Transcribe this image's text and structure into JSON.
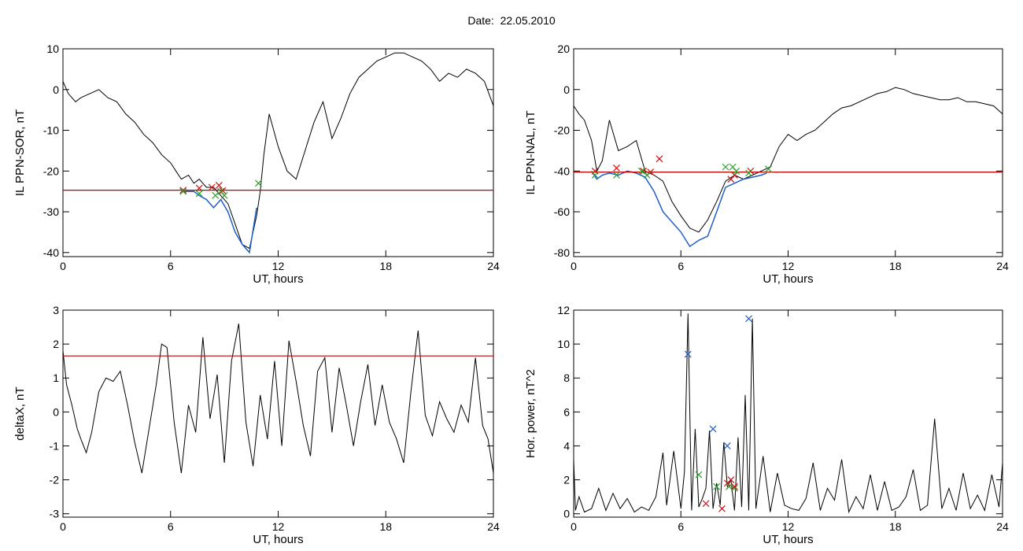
{
  "figure_title": "Date:  22.05.2010",
  "colors": {
    "trace": "#000000",
    "highlight": "#1f5fc7",
    "threshold": "#c00000",
    "red_marker": "#d01010",
    "green_marker": "#2ca02c",
    "blue_marker": "#1f5fc7"
  },
  "chart_data": [
    {
      "type": "line",
      "panel": "top-left",
      "xlabel": "UT, hours",
      "ylabel": "IL PPN-SOR, nT",
      "xlim": [
        0,
        24
      ],
      "ylim": [
        -41,
        10
      ],
      "xticks": [
        0,
        6,
        12,
        18,
        24
      ],
      "yticks": [
        10,
        0,
        -10,
        -20,
        -30,
        -40
      ],
      "threshold": -24.7,
      "series": [
        {
          "style": "black",
          "x": [
            0,
            0.3,
            0.7,
            1,
            1.5,
            2,
            2.5,
            3,
            3.5,
            4,
            4.5,
            5,
            5.5,
            6,
            6.3,
            6.6,
            7,
            7.3,
            7.6,
            8,
            8.4,
            8.8,
            9.2,
            9.6,
            10,
            10.4,
            10.8,
            11,
            11.2,
            11.5,
            12,
            12.5,
            13,
            13.5,
            14,
            14.5,
            15,
            15.5,
            16,
            16.5,
            17,
            17.5,
            18,
            18.5,
            19,
            19.5,
            20,
            20.5,
            21,
            21.5,
            22,
            22.5,
            23,
            23.5,
            24
          ],
          "y": [
            2,
            -1,
            -3,
            -2,
            -1,
            0,
            -2,
            -3,
            -6,
            -8,
            -11,
            -13,
            -16,
            -18,
            -20,
            -22,
            -21,
            -23,
            -22,
            -24,
            -24,
            -26,
            -28,
            -33,
            -38,
            -39,
            -31,
            -25,
            -16,
            -6,
            -14,
            -20,
            -22,
            -15,
            -8,
            -3,
            -12,
            -7,
            -1,
            3,
            5,
            7,
            8,
            9,
            9,
            8,
            7,
            5,
            2,
            4,
            3,
            5,
            4,
            2,
            -4
          ]
        },
        {
          "style": "blue",
          "x": [
            6.6,
            7,
            7.3,
            7.6,
            8,
            8.4,
            8.8,
            9.2,
            9.6,
            10,
            10.4,
            10.8
          ],
          "y": [
            -25,
            -25,
            -25,
            -26,
            -27,
            -29,
            -27,
            -30,
            -35,
            -38,
            -40,
            -29
          ]
        }
      ],
      "markers": [
        {
          "color": "red",
          "x": [
            6.7,
            7.6,
            8.3,
            8.7,
            8.9
          ],
          "y": [
            -24.7,
            -24.2,
            -24,
            -23.5,
            -24.8
          ]
        },
        {
          "color": "green",
          "x": [
            6.7,
            7.6,
            8.5,
            8.8,
            9.0,
            10.9
          ],
          "y": [
            -25,
            -25.5,
            -26,
            -25,
            -26,
            -23
          ]
        }
      ]
    },
    {
      "type": "line",
      "panel": "top-right",
      "xlabel": "UT, hours",
      "ylabel": "IL PPN-NAL, nT",
      "xlim": [
        0,
        24
      ],
      "ylim": [
        -82,
        20
      ],
      "xticks": [
        0,
        6,
        12,
        18,
        24
      ],
      "yticks": [
        20,
        0,
        -20,
        -40,
        -60,
        -80
      ],
      "threshold": -40.5,
      "series": [
        {
          "style": "black",
          "x": [
            0,
            0.3,
            0.6,
            1,
            1.3,
            1.6,
            2,
            2.5,
            3,
            3.5,
            4,
            4.5,
            5,
            5.5,
            6,
            6.5,
            7,
            7.5,
            8,
            8.5,
            9,
            9.5,
            10,
            10.5,
            11,
            11.5,
            12,
            12.5,
            13,
            13.5,
            14,
            14.5,
            15,
            15.5,
            16,
            16.5,
            17,
            17.5,
            18,
            18.5,
            19,
            19.5,
            20,
            20.5,
            21,
            21.5,
            22,
            22.5,
            23,
            23.5,
            24
          ],
          "y": [
            -8,
            -12,
            -15,
            -25,
            -40,
            -35,
            -15,
            -30,
            -28,
            -25,
            -40,
            -42,
            -45,
            -55,
            -62,
            -68,
            -70,
            -64,
            -55,
            -45,
            -42,
            -44,
            -42,
            -40,
            -38,
            -28,
            -22,
            -25,
            -22,
            -20,
            -16,
            -12,
            -9,
            -8,
            -6,
            -4,
            -2,
            -1,
            1,
            0,
            -2,
            -3,
            -4,
            -5,
            -5,
            -4,
            -6,
            -6,
            -7,
            -8,
            -12
          ]
        },
        {
          "style": "blue",
          "x": [
            1,
            1.3,
            1.6,
            2,
            2.5,
            3,
            3.5,
            4,
            4.5,
            5,
            5.5,
            6,
            6.5,
            7,
            7.5,
            8,
            8.5,
            9,
            9.5,
            10,
            10.5,
            10.8
          ],
          "y": [
            -40,
            -44,
            -42,
            -41,
            -42,
            -40,
            -41,
            -43,
            -50,
            -60,
            -65,
            -70,
            -77,
            -74,
            -72,
            -60,
            -48,
            -46,
            -44,
            -43,
            -42,
            -41
          ]
        }
      ],
      "markers": [
        {
          "color": "red",
          "x": [
            1.2,
            2.4,
            3.9,
            4.3,
            4.8,
            8.8,
            9.0,
            9.9
          ],
          "y": [
            -40,
            -38.5,
            -40,
            -40.5,
            -34,
            -44,
            -42,
            -40
          ]
        },
        {
          "color": "green",
          "x": [
            1.2,
            2.4,
            3.8,
            4.1,
            8.5,
            8.9,
            9.1,
            9.8,
            10.9
          ],
          "y": [
            -42,
            -42,
            -40,
            -42,
            -38,
            -38,
            -40,
            -41,
            -39
          ]
        }
      ]
    },
    {
      "type": "line",
      "panel": "bottom-left",
      "xlabel": "UT, hours",
      "ylabel": "deltaX, nT",
      "xlim": [
        0,
        24
      ],
      "ylim": [
        -3.1,
        3
      ],
      "xticks": [
        0,
        6,
        12,
        18,
        24
      ],
      "yticks": [
        3,
        2,
        1,
        0,
        -1,
        -2,
        -3
      ],
      "threshold": 1.65,
      "series": [
        {
          "style": "black",
          "x": [
            0,
            0.2,
            0.5,
            0.8,
            1,
            1.3,
            1.6,
            2,
            2.4,
            2.8,
            3.2,
            3.6,
            4,
            4.4,
            4.8,
            5.2,
            5.5,
            5.8,
            6.2,
            6.6,
            7,
            7.4,
            7.8,
            8.2,
            8.6,
            9,
            9.4,
            9.8,
            10.2,
            10.6,
            11,
            11.4,
            11.8,
            12.2,
            12.6,
            13,
            13.4,
            13.8,
            14.2,
            14.6,
            15,
            15.4,
            15.8,
            16.2,
            16.6,
            17,
            17.4,
            17.8,
            18.2,
            18.6,
            19,
            19.4,
            19.8,
            20.2,
            20.6,
            21,
            21.4,
            21.8,
            22.2,
            22.6,
            23,
            23.4,
            23.7,
            24
          ],
          "y": [
            1.8,
            0.8,
            0.2,
            -0.5,
            -0.8,
            -1.2,
            -0.6,
            0.6,
            1,
            0.9,
            1.2,
            0.2,
            -0.9,
            -1.8,
            -0.5,
            0.8,
            2,
            1.9,
            -0.3,
            -1.8,
            0.2,
            -0.6,
            2.2,
            -0.2,
            1.1,
            -1.5,
            1.5,
            2.6,
            -0.3,
            -1.6,
            0.5,
            -0.8,
            1.5,
            -1,
            2.1,
            0.9,
            -0.4,
            -1.3,
            1.2,
            1.6,
            -0.6,
            1.3,
            0.2,
            -1,
            0.3,
            1.4,
            -0.4,
            0.8,
            -0.3,
            -0.8,
            -1.5,
            0.6,
            2.4,
            -0.1,
            -0.7,
            0.3,
            -0.2,
            -0.6,
            0.2,
            -0.3,
            1.6,
            -0.4,
            -0.8,
            -1.8
          ]
        }
      ],
      "markers": []
    },
    {
      "type": "line",
      "panel": "bottom-right",
      "xlabel": "UT, hours",
      "ylabel": "Hor. power, nT^2",
      "xlim": [
        0,
        24
      ],
      "ylim": [
        -0.2,
        12
      ],
      "xticks": [
        0,
        6,
        12,
        18,
        24
      ],
      "yticks": [
        0,
        2,
        4,
        6,
        8,
        10,
        12
      ],
      "series": [
        {
          "style": "black",
          "x": [
            0,
            0.1,
            0.3,
            0.6,
            1,
            1.4,
            1.8,
            2.2,
            2.6,
            3,
            3.4,
            3.8,
            4.2,
            4.6,
            5,
            5.2,
            5.6,
            6,
            6.2,
            6.4,
            6.6,
            6.8,
            7,
            7.2,
            7.4,
            7.6,
            7.8,
            8,
            8.2,
            8.4,
            8.6,
            8.8,
            9,
            9.2,
            9.4,
            9.6,
            9.8,
            10,
            10.2,
            10.6,
            11,
            11.4,
            11.8,
            12.2,
            12.6,
            13,
            13.4,
            13.8,
            14.2,
            14.6,
            15,
            15.4,
            15.8,
            16.2,
            16.6,
            17,
            17.4,
            17.8,
            18.2,
            18.6,
            19,
            19.4,
            19.8,
            20.2,
            20.6,
            21,
            21.4,
            21.8,
            22.2,
            22.6,
            23,
            23.4,
            23.8,
            24
          ],
          "y": [
            3.2,
            0.2,
            1,
            0.1,
            0.3,
            1.5,
            0.2,
            1.2,
            0.3,
            0.9,
            0.1,
            0.4,
            0.2,
            1,
            3.6,
            0.5,
            3.7,
            0.3,
            2.5,
            11.8,
            0.2,
            5,
            0.4,
            0.9,
            1.5,
            4.9,
            0.3,
            1.8,
            0.5,
            4.2,
            1.6,
            2,
            0.2,
            4.5,
            0.4,
            7,
            0.2,
            11.5,
            0.3,
            3.4,
            0.1,
            2.4,
            0.5,
            0.3,
            0.2,
            0.9,
            3,
            0.2,
            1.5,
            0.8,
            3.2,
            0.1,
            1,
            0.3,
            2.3,
            0.2,
            1.9,
            0.2,
            0.4,
            1,
            2.6,
            0.2,
            0.5,
            5.6,
            0.3,
            1.5,
            0.2,
            2.4,
            0.3,
            1.1,
            0.2,
            2.3,
            0.4,
            3
          ]
        }
      ],
      "markers": [
        {
          "color": "blue",
          "x": [
            6.4,
            7.8,
            8.6,
            9.8
          ],
          "y": [
            9.4,
            5,
            4,
            11.5
          ]
        },
        {
          "color": "green",
          "x": [
            7,
            8,
            8.7,
            9.0
          ],
          "y": [
            2.3,
            1.6,
            1.6,
            1.5
          ]
        },
        {
          "color": "red",
          "x": [
            7.4,
            8.3,
            8.6,
            8.8,
            9.0
          ],
          "y": [
            0.6,
            0.3,
            1.8,
            2,
            1.6
          ]
        }
      ]
    }
  ]
}
